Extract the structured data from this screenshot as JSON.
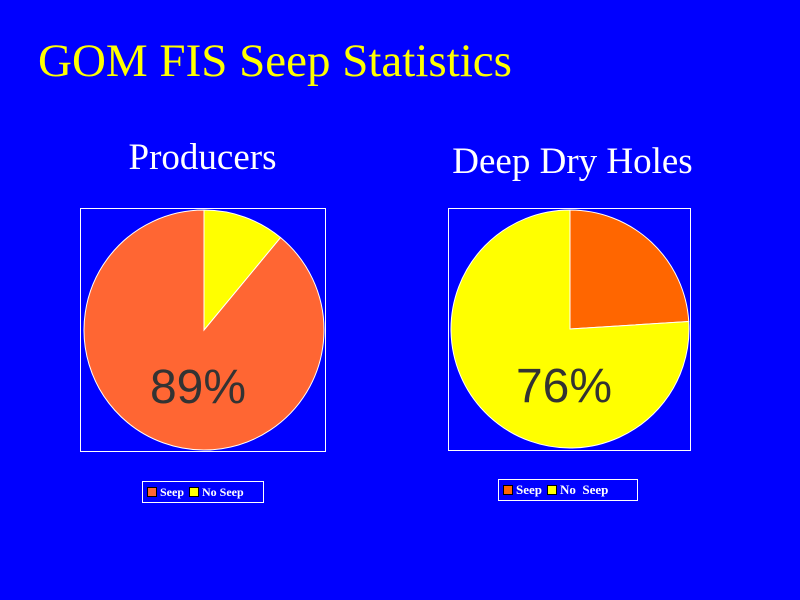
{
  "slide": {
    "title": "GOM FIS Seep Statistics"
  },
  "colors": {
    "background": "#0000FF",
    "title": "#FFFF00",
    "seep_left": "#FF6633",
    "seep_right": "#FF6600",
    "no_seep": "#FFFF00",
    "pie_label": "#333333"
  },
  "chart_data": [
    {
      "type": "pie",
      "title": "Producers",
      "categories": [
        "Seep",
        "No Seep"
      ],
      "values": [
        89,
        11
      ],
      "data_label": "89%",
      "legend": [
        "Seep",
        "No Seep"
      ],
      "legend_placement": "bottom",
      "start": "12 o'clock, counter-clockwise"
    },
    {
      "type": "pie",
      "title": "Deep Dry Holes",
      "categories": [
        "Seep",
        "No Seep"
      ],
      "values": [
        24,
        76
      ],
      "data_label": "76%",
      "legend": [
        "Seep",
        "No  Seep"
      ],
      "legend_placement": "bottom",
      "start": "12 o'clock, clockwise"
    }
  ]
}
